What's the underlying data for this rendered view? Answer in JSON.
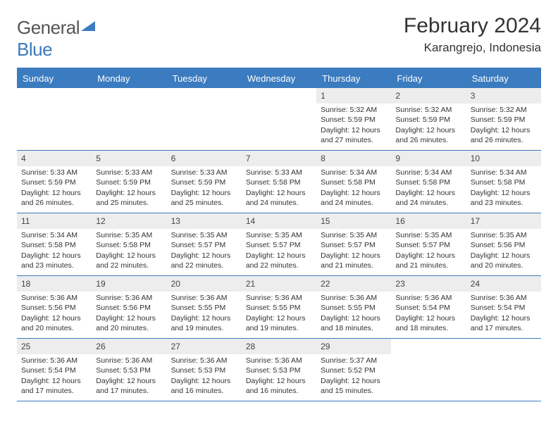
{
  "logo": {
    "word1": "General",
    "word2": "Blue"
  },
  "title": "February 2024",
  "location": "Karangrejo, Indonesia",
  "weekdays": [
    "Sunday",
    "Monday",
    "Tuesday",
    "Wednesday",
    "Thursday",
    "Friday",
    "Saturday"
  ],
  "colors": {
    "accent": "#3b7bbf",
    "header_bg": "#3b7bbf",
    "daynum_bg": "#ededed",
    "text": "#333333",
    "background": "#ffffff"
  },
  "typography": {
    "title_fontsize": 30,
    "location_fontsize": 17,
    "weekday_fontsize": 13,
    "cell_fontsize": 10.5,
    "daynum_fontsize": 12
  },
  "layout": {
    "columns": 7,
    "rows": 5,
    "leading_blanks": 4
  },
  "days": [
    {
      "n": 1,
      "sunrise": "5:32 AM",
      "sunset": "5:59 PM",
      "daylight": "12 hours and 27 minutes."
    },
    {
      "n": 2,
      "sunrise": "5:32 AM",
      "sunset": "5:59 PM",
      "daylight": "12 hours and 26 minutes."
    },
    {
      "n": 3,
      "sunrise": "5:32 AM",
      "sunset": "5:59 PM",
      "daylight": "12 hours and 26 minutes."
    },
    {
      "n": 4,
      "sunrise": "5:33 AM",
      "sunset": "5:59 PM",
      "daylight": "12 hours and 26 minutes."
    },
    {
      "n": 5,
      "sunrise": "5:33 AM",
      "sunset": "5:59 PM",
      "daylight": "12 hours and 25 minutes."
    },
    {
      "n": 6,
      "sunrise": "5:33 AM",
      "sunset": "5:59 PM",
      "daylight": "12 hours and 25 minutes."
    },
    {
      "n": 7,
      "sunrise": "5:33 AM",
      "sunset": "5:58 PM",
      "daylight": "12 hours and 24 minutes."
    },
    {
      "n": 8,
      "sunrise": "5:34 AM",
      "sunset": "5:58 PM",
      "daylight": "12 hours and 24 minutes."
    },
    {
      "n": 9,
      "sunrise": "5:34 AM",
      "sunset": "5:58 PM",
      "daylight": "12 hours and 24 minutes."
    },
    {
      "n": 10,
      "sunrise": "5:34 AM",
      "sunset": "5:58 PM",
      "daylight": "12 hours and 23 minutes."
    },
    {
      "n": 11,
      "sunrise": "5:34 AM",
      "sunset": "5:58 PM",
      "daylight": "12 hours and 23 minutes."
    },
    {
      "n": 12,
      "sunrise": "5:35 AM",
      "sunset": "5:58 PM",
      "daylight": "12 hours and 22 minutes."
    },
    {
      "n": 13,
      "sunrise": "5:35 AM",
      "sunset": "5:57 PM",
      "daylight": "12 hours and 22 minutes."
    },
    {
      "n": 14,
      "sunrise": "5:35 AM",
      "sunset": "5:57 PM",
      "daylight": "12 hours and 22 minutes."
    },
    {
      "n": 15,
      "sunrise": "5:35 AM",
      "sunset": "5:57 PM",
      "daylight": "12 hours and 21 minutes."
    },
    {
      "n": 16,
      "sunrise": "5:35 AM",
      "sunset": "5:57 PM",
      "daylight": "12 hours and 21 minutes."
    },
    {
      "n": 17,
      "sunrise": "5:35 AM",
      "sunset": "5:56 PM",
      "daylight": "12 hours and 20 minutes."
    },
    {
      "n": 18,
      "sunrise": "5:36 AM",
      "sunset": "5:56 PM",
      "daylight": "12 hours and 20 minutes."
    },
    {
      "n": 19,
      "sunrise": "5:36 AM",
      "sunset": "5:56 PM",
      "daylight": "12 hours and 20 minutes."
    },
    {
      "n": 20,
      "sunrise": "5:36 AM",
      "sunset": "5:55 PM",
      "daylight": "12 hours and 19 minutes."
    },
    {
      "n": 21,
      "sunrise": "5:36 AM",
      "sunset": "5:55 PM",
      "daylight": "12 hours and 19 minutes."
    },
    {
      "n": 22,
      "sunrise": "5:36 AM",
      "sunset": "5:55 PM",
      "daylight": "12 hours and 18 minutes."
    },
    {
      "n": 23,
      "sunrise": "5:36 AM",
      "sunset": "5:54 PM",
      "daylight": "12 hours and 18 minutes."
    },
    {
      "n": 24,
      "sunrise": "5:36 AM",
      "sunset": "5:54 PM",
      "daylight": "12 hours and 17 minutes."
    },
    {
      "n": 25,
      "sunrise": "5:36 AM",
      "sunset": "5:54 PM",
      "daylight": "12 hours and 17 minutes."
    },
    {
      "n": 26,
      "sunrise": "5:36 AM",
      "sunset": "5:53 PM",
      "daylight": "12 hours and 17 minutes."
    },
    {
      "n": 27,
      "sunrise": "5:36 AM",
      "sunset": "5:53 PM",
      "daylight": "12 hours and 16 minutes."
    },
    {
      "n": 28,
      "sunrise": "5:36 AM",
      "sunset": "5:53 PM",
      "daylight": "12 hours and 16 minutes."
    },
    {
      "n": 29,
      "sunrise": "5:37 AM",
      "sunset": "5:52 PM",
      "daylight": "12 hours and 15 minutes."
    }
  ],
  "labels": {
    "sunrise": "Sunrise:",
    "sunset": "Sunset:",
    "daylight": "Daylight:"
  }
}
